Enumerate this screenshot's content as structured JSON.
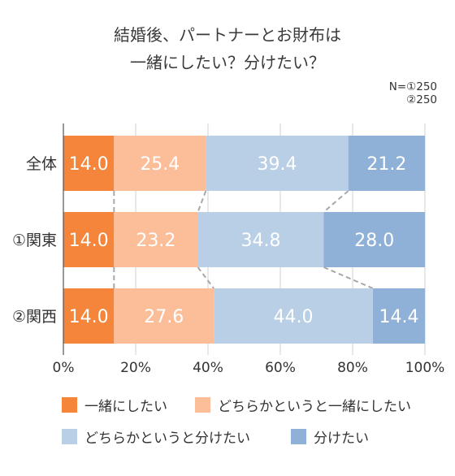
{
  "title": {
    "line1": "結婚後、パートナーとお財布は",
    "line2": "一緒にしたい？分けたい？"
  },
  "sample_note": {
    "line1": "N=①250",
    "line2": "②250"
  },
  "colors": {
    "series": [
      "#f4853a",
      "#fbbe99",
      "#b9cfe6",
      "#8fb1d7"
    ],
    "grid": "#d0d0d0",
    "connector": "#a8a8a8",
    "label_text": "#ffffff"
  },
  "legend": [
    "一緒にしたい",
    "どちらかというと一緒にしたい",
    "どちらかというと分けたい",
    "分けたい"
  ],
  "chart_data": {
    "type": "bar",
    "orientation": "horizontal",
    "stacked": true,
    "percent_stacked": true,
    "categories": [
      "全体",
      "①関東",
      "②関西"
    ],
    "series": [
      {
        "name": "一緒にしたい",
        "values": [
          14.0,
          14.0,
          14.0
        ]
      },
      {
        "name": "どちらかというと一緒にしたい",
        "values": [
          25.4,
          23.2,
          27.6
        ]
      },
      {
        "name": "どちらかというと分けたい",
        "values": [
          39.4,
          34.8,
          44.0
        ]
      },
      {
        "name": "分けたい",
        "values": [
          21.2,
          28.0,
          14.4
        ]
      }
    ],
    "value_labels": [
      [
        "14.0",
        "25.4",
        "39.4",
        "21.2"
      ],
      [
        "14.0",
        "23.2",
        "34.8",
        "28.0"
      ],
      [
        "14.0",
        "27.6",
        "44.0",
        "14.4"
      ]
    ],
    "xlim": [
      0,
      100
    ],
    "xticks": [
      "0%",
      "20%",
      "40%",
      "60%",
      "80%",
      "100%"
    ],
    "grid": true,
    "legend_position": "bottom",
    "series_connectors": true
  }
}
